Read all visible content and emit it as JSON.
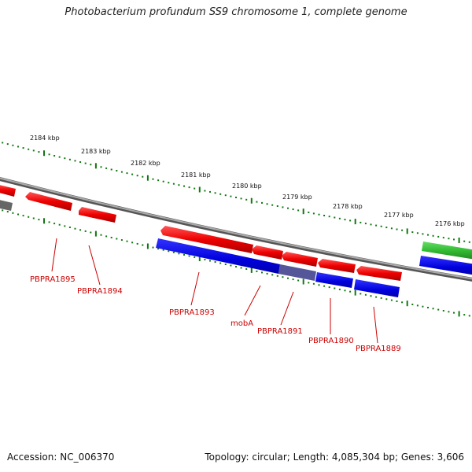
{
  "title": "Photobacterium profundum SS9 chromosome 1, complete genome",
  "footer": {
    "accession": "Accession: NC_006370",
    "summary": "Topology: circular; Length: 4,085,304 bp; Genes: 3,606"
  },
  "scale_labels": [
    "2184 kbp",
    "2183 kbp",
    "2182 kbp",
    "2181 kbp",
    "2180 kbp",
    "2179 kbp",
    "2178 kbp",
    "2177 kbp",
    "2176 kbp"
  ],
  "gene_labels": [
    "PBPRA1895",
    "PBPRA1894",
    "PBPRA1893",
    "mobA",
    "PBPRA1891",
    "PBPRA1890",
    "PBPRA1889"
  ],
  "colors": {
    "forward_gene": "#ee1111",
    "reverse_gene": "#1111dd",
    "other_gene": "#33bb33",
    "overlap": "#555599",
    "backbone": "#888888",
    "ticks": "#117711",
    "label": "#cc0000"
  }
}
